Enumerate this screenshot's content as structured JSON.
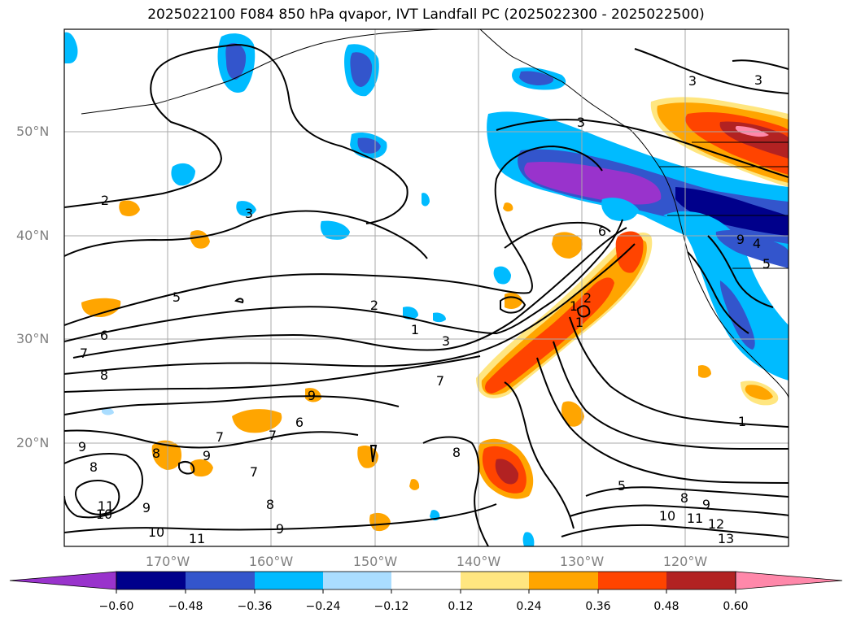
{
  "title": "2025022100 F084 850 hPa qvapor, IVT Landfall PC (2025022300 - 2025022500)",
  "map": {
    "lat_labels": [
      "50°N",
      "40°N",
      "30°N",
      "20°N"
    ],
    "lon_labels": [
      "170°W",
      "160°W",
      "150°W",
      "140°W",
      "130°W",
      "120°W"
    ],
    "contour_labels": [
      "3",
      "3",
      "3",
      "3",
      "2",
      "2",
      "1",
      "3",
      "6",
      "5",
      "6",
      "7",
      "8",
      "9",
      "7",
      "7",
      "6",
      "7",
      "9",
      "9",
      "8",
      "8",
      "11",
      "10",
      "9",
      "10",
      "11",
      "8",
      "9",
      "8",
      "7",
      "5",
      "1",
      "8",
      "9",
      "10",
      "11",
      "12",
      "13",
      "9",
      "4",
      "5",
      "1",
      "2",
      "1"
    ]
  },
  "colorbar": {
    "ticks": [
      "−0.60",
      "−0.48",
      "−0.36",
      "−0.24",
      "−0.12",
      "0.12",
      "0.24",
      "0.36",
      "0.48",
      "0.60"
    ],
    "colors": [
      "#9933cc",
      "#00008b",
      "#3355cc",
      "#00bbff",
      "#aaddff",
      "#ffffff",
      "#ffe680",
      "#ffa500",
      "#ff4400",
      "#b22222",
      "#ff88aa"
    ]
  }
}
